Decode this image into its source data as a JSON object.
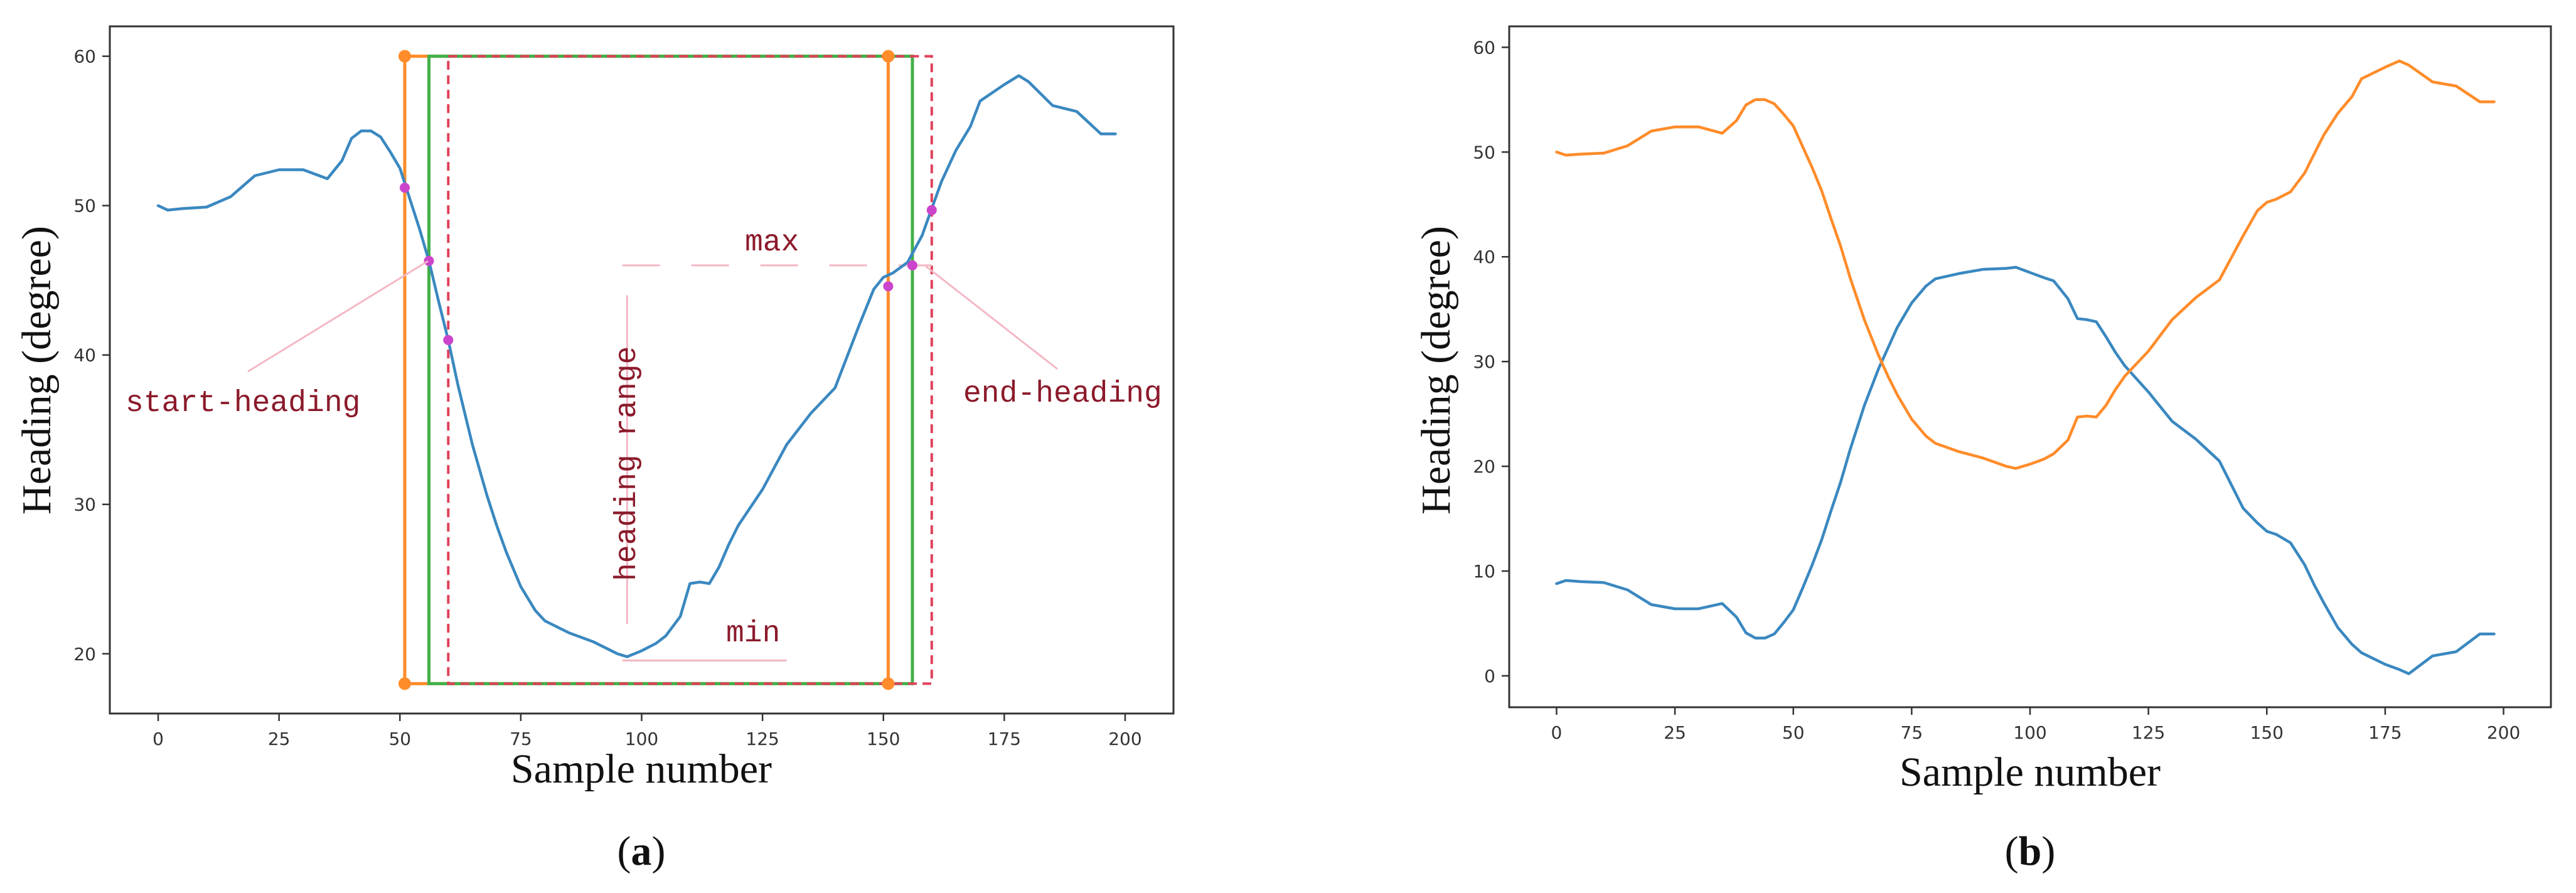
{
  "colors": {
    "blue": "#3a88c0",
    "orange": "#ff8c2a",
    "green": "#43b049",
    "red_dash": "#e0405a",
    "magenta": "#cc44cc",
    "annotation_text": "#8b1a2b",
    "leader": "#f4b8c4",
    "frame": "#333333"
  },
  "chart_data": [
    {
      "type": "line",
      "panel_label": {
        "open": "(",
        "letter": "a",
        "close": ")"
      },
      "xlabel": "Sample number",
      "ylabel": "Heading (degree)",
      "xlim": [
        -10,
        210
      ],
      "ylim": [
        16,
        62
      ],
      "xticks": [
        "0",
        "25",
        "50",
        "75",
        "100",
        "125",
        "150",
        "175",
        "200"
      ],
      "xtick_values": [
        0,
        25,
        50,
        75,
        100,
        125,
        150,
        175,
        200
      ],
      "yticks": [
        "20",
        "30",
        "40",
        "50",
        "60"
      ],
      "ytick_values": [
        20,
        30,
        40,
        50,
        60
      ],
      "series": [
        {
          "name": "heading",
          "color": "#3a88c0",
          "x": [
            0,
            2,
            5,
            10,
            15,
            20,
            25,
            30,
            35,
            38,
            40,
            42,
            44,
            46,
            48,
            50,
            52,
            54,
            56,
            58,
            60,
            62,
            65,
            68,
            70,
            72,
            75,
            78,
            80,
            85,
            90,
            95,
            97,
            100,
            103,
            105,
            108,
            110,
            112,
            114,
            116,
            118,
            120,
            125,
            130,
            135,
            140,
            145,
            148,
            150,
            152,
            155,
            158,
            160,
            162,
            165,
            168,
            170,
            175,
            178,
            180,
            185,
            190,
            195,
            198
          ],
          "values": [
            50.0,
            49.7,
            49.8,
            49.9,
            50.6,
            52.0,
            52.4,
            52.4,
            51.8,
            53.0,
            54.5,
            55.0,
            55.0,
            54.6,
            53.6,
            52.5,
            50.5,
            48.5,
            46.3,
            43.6,
            41.0,
            38.0,
            34.0,
            30.6,
            28.6,
            26.8,
            24.5,
            22.9,
            22.2,
            21.4,
            20.8,
            20.0,
            19.8,
            20.2,
            20.7,
            21.2,
            22.5,
            24.7,
            24.8,
            24.7,
            25.8,
            27.3,
            28.6,
            31.0,
            34.0,
            36.1,
            37.8,
            42.0,
            44.4,
            45.2,
            45.5,
            46.2,
            48.0,
            49.8,
            51.6,
            53.7,
            55.3,
            57.0,
            58.1,
            58.7,
            58.3,
            56.7,
            56.3,
            54.8,
            54.8
          ]
        }
      ],
      "windows": [
        {
          "name": "orange-window",
          "color": "#ff8c2a",
          "x0": 51,
          "x1": 151,
          "y0": 18,
          "y1": 60,
          "style": "solid"
        },
        {
          "name": "green-window",
          "color": "#43b049",
          "x0": 56,
          "x1": 156,
          "y0": 18,
          "y1": 60,
          "style": "solid"
        },
        {
          "name": "red-window",
          "color": "#e0405a",
          "x0": 60,
          "x1": 160,
          "y0": 18,
          "y1": 60,
          "style": "dashed"
        }
      ],
      "markers": [
        {
          "x": 51,
          "y": 60,
          "color": "#ff8c2a"
        },
        {
          "x": 51,
          "y": 18,
          "color": "#ff8c2a"
        },
        {
          "x": 151,
          "y": 60,
          "color": "#ff8c2a"
        },
        {
          "x": 151,
          "y": 18,
          "color": "#ff8c2a"
        },
        {
          "x": 51,
          "y": 51.2,
          "color": "#cc44cc"
        },
        {
          "x": 56,
          "y": 46.3,
          "color": "#cc44cc"
        },
        {
          "x": 60,
          "y": 41.0,
          "color": "#cc44cc"
        },
        {
          "x": 151,
          "y": 44.6,
          "color": "#cc44cc"
        },
        {
          "x": 156,
          "y": 46.0,
          "color": "#cc44cc"
        },
        {
          "x": 160,
          "y": 49.7,
          "color": "#cc44cc"
        }
      ],
      "guide_lines": {
        "max": {
          "x0": 96,
          "x1": 160,
          "y": 46.0
        },
        "min": {
          "x0": 96,
          "x1": 130,
          "y": 19.8
        },
        "range": {
          "x": 97,
          "y0": 22,
          "y1": 44
        }
      },
      "annotations": {
        "start_heading": "start-heading",
        "end_heading": "end-heading",
        "max": "max",
        "min": "min",
        "heading_range": "heading range"
      }
    },
    {
      "type": "line",
      "panel_label": {
        "open": "(",
        "letter": "b",
        "close": ")"
      },
      "xlabel": "Sample number",
      "ylabel": "Heading (degree)",
      "xlim": [
        -10,
        210
      ],
      "ylim": [
        -3,
        62
      ],
      "xticks": [
        "0",
        "25",
        "50",
        "75",
        "100",
        "125",
        "150",
        "175",
        "200"
      ],
      "xtick_values": [
        0,
        25,
        50,
        75,
        100,
        125,
        150,
        175,
        200
      ],
      "yticks": [
        "0",
        "10",
        "20",
        "30",
        "40",
        "50",
        "60"
      ],
      "ytick_values": [
        0,
        10,
        20,
        30,
        40,
        50,
        60
      ],
      "series": [
        {
          "name": "blue",
          "color": "#3a88c0",
          "x": [
            0,
            2,
            5,
            10,
            15,
            20,
            25,
            30,
            35,
            38,
            40,
            42,
            44,
            46,
            48,
            50,
            52,
            54,
            56,
            58,
            60,
            62,
            65,
            68,
            70,
            72,
            75,
            78,
            80,
            85,
            90,
            95,
            97,
            100,
            103,
            105,
            108,
            110,
            112,
            114,
            116,
            118,
            120,
            125,
            130,
            135,
            140,
            145,
            148,
            150,
            152,
            155,
            158,
            160,
            162,
            165,
            168,
            170,
            175,
            178,
            180,
            185,
            190,
            195,
            198
          ],
          "values": [
            8.8,
            9.1,
            9.0,
            8.9,
            8.2,
            6.8,
            6.4,
            6.4,
            6.9,
            5.6,
            4.1,
            3.6,
            3.6,
            4.0,
            5.1,
            6.3,
            8.4,
            10.6,
            13.0,
            15.8,
            18.5,
            21.6,
            25.8,
            29.3,
            31.3,
            33.3,
            35.6,
            37.2,
            37.9,
            38.4,
            38.8,
            38.9,
            39.0,
            38.5,
            38.0,
            37.7,
            36.0,
            34.1,
            34.0,
            33.8,
            32.4,
            30.9,
            29.6,
            27.1,
            24.3,
            22.6,
            20.5,
            16.0,
            14.6,
            13.8,
            13.5,
            12.7,
            10.6,
            8.7,
            7.0,
            4.6,
            3.0,
            2.2,
            1.1,
            0.6,
            0.2,
            1.9,
            2.3,
            4.0,
            4.0
          ]
        },
        {
          "name": "orange",
          "color": "#ff8c2a",
          "x": [
            0,
            2,
            5,
            10,
            15,
            20,
            25,
            30,
            35,
            38,
            40,
            42,
            44,
            46,
            48,
            50,
            52,
            54,
            56,
            58,
            60,
            62,
            65,
            68,
            70,
            72,
            75,
            78,
            80,
            85,
            90,
            95,
            97,
            100,
            103,
            105,
            108,
            110,
            112,
            114,
            116,
            118,
            120,
            125,
            130,
            135,
            140,
            145,
            148,
            150,
            152,
            155,
            158,
            160,
            162,
            165,
            168,
            170,
            175,
            178,
            180,
            185,
            190,
            195,
            198
          ],
          "values": [
            50.0,
            49.7,
            49.8,
            49.9,
            50.6,
            52.0,
            52.4,
            52.4,
            51.8,
            53.0,
            54.5,
            55.0,
            55.0,
            54.6,
            53.6,
            52.5,
            50.5,
            48.5,
            46.3,
            43.6,
            41.0,
            38.0,
            34.0,
            30.6,
            28.6,
            26.8,
            24.5,
            22.9,
            22.2,
            21.4,
            20.8,
            20.0,
            19.8,
            20.2,
            20.7,
            21.2,
            22.5,
            24.7,
            24.8,
            24.7,
            25.8,
            27.3,
            28.6,
            31.0,
            34.0,
            36.1,
            37.8,
            42.0,
            44.4,
            45.2,
            45.5,
            46.2,
            48.0,
            49.8,
            51.6,
            53.7,
            55.3,
            57.0,
            58.1,
            58.7,
            58.3,
            56.7,
            56.3,
            54.8,
            54.8
          ]
        }
      ]
    }
  ]
}
